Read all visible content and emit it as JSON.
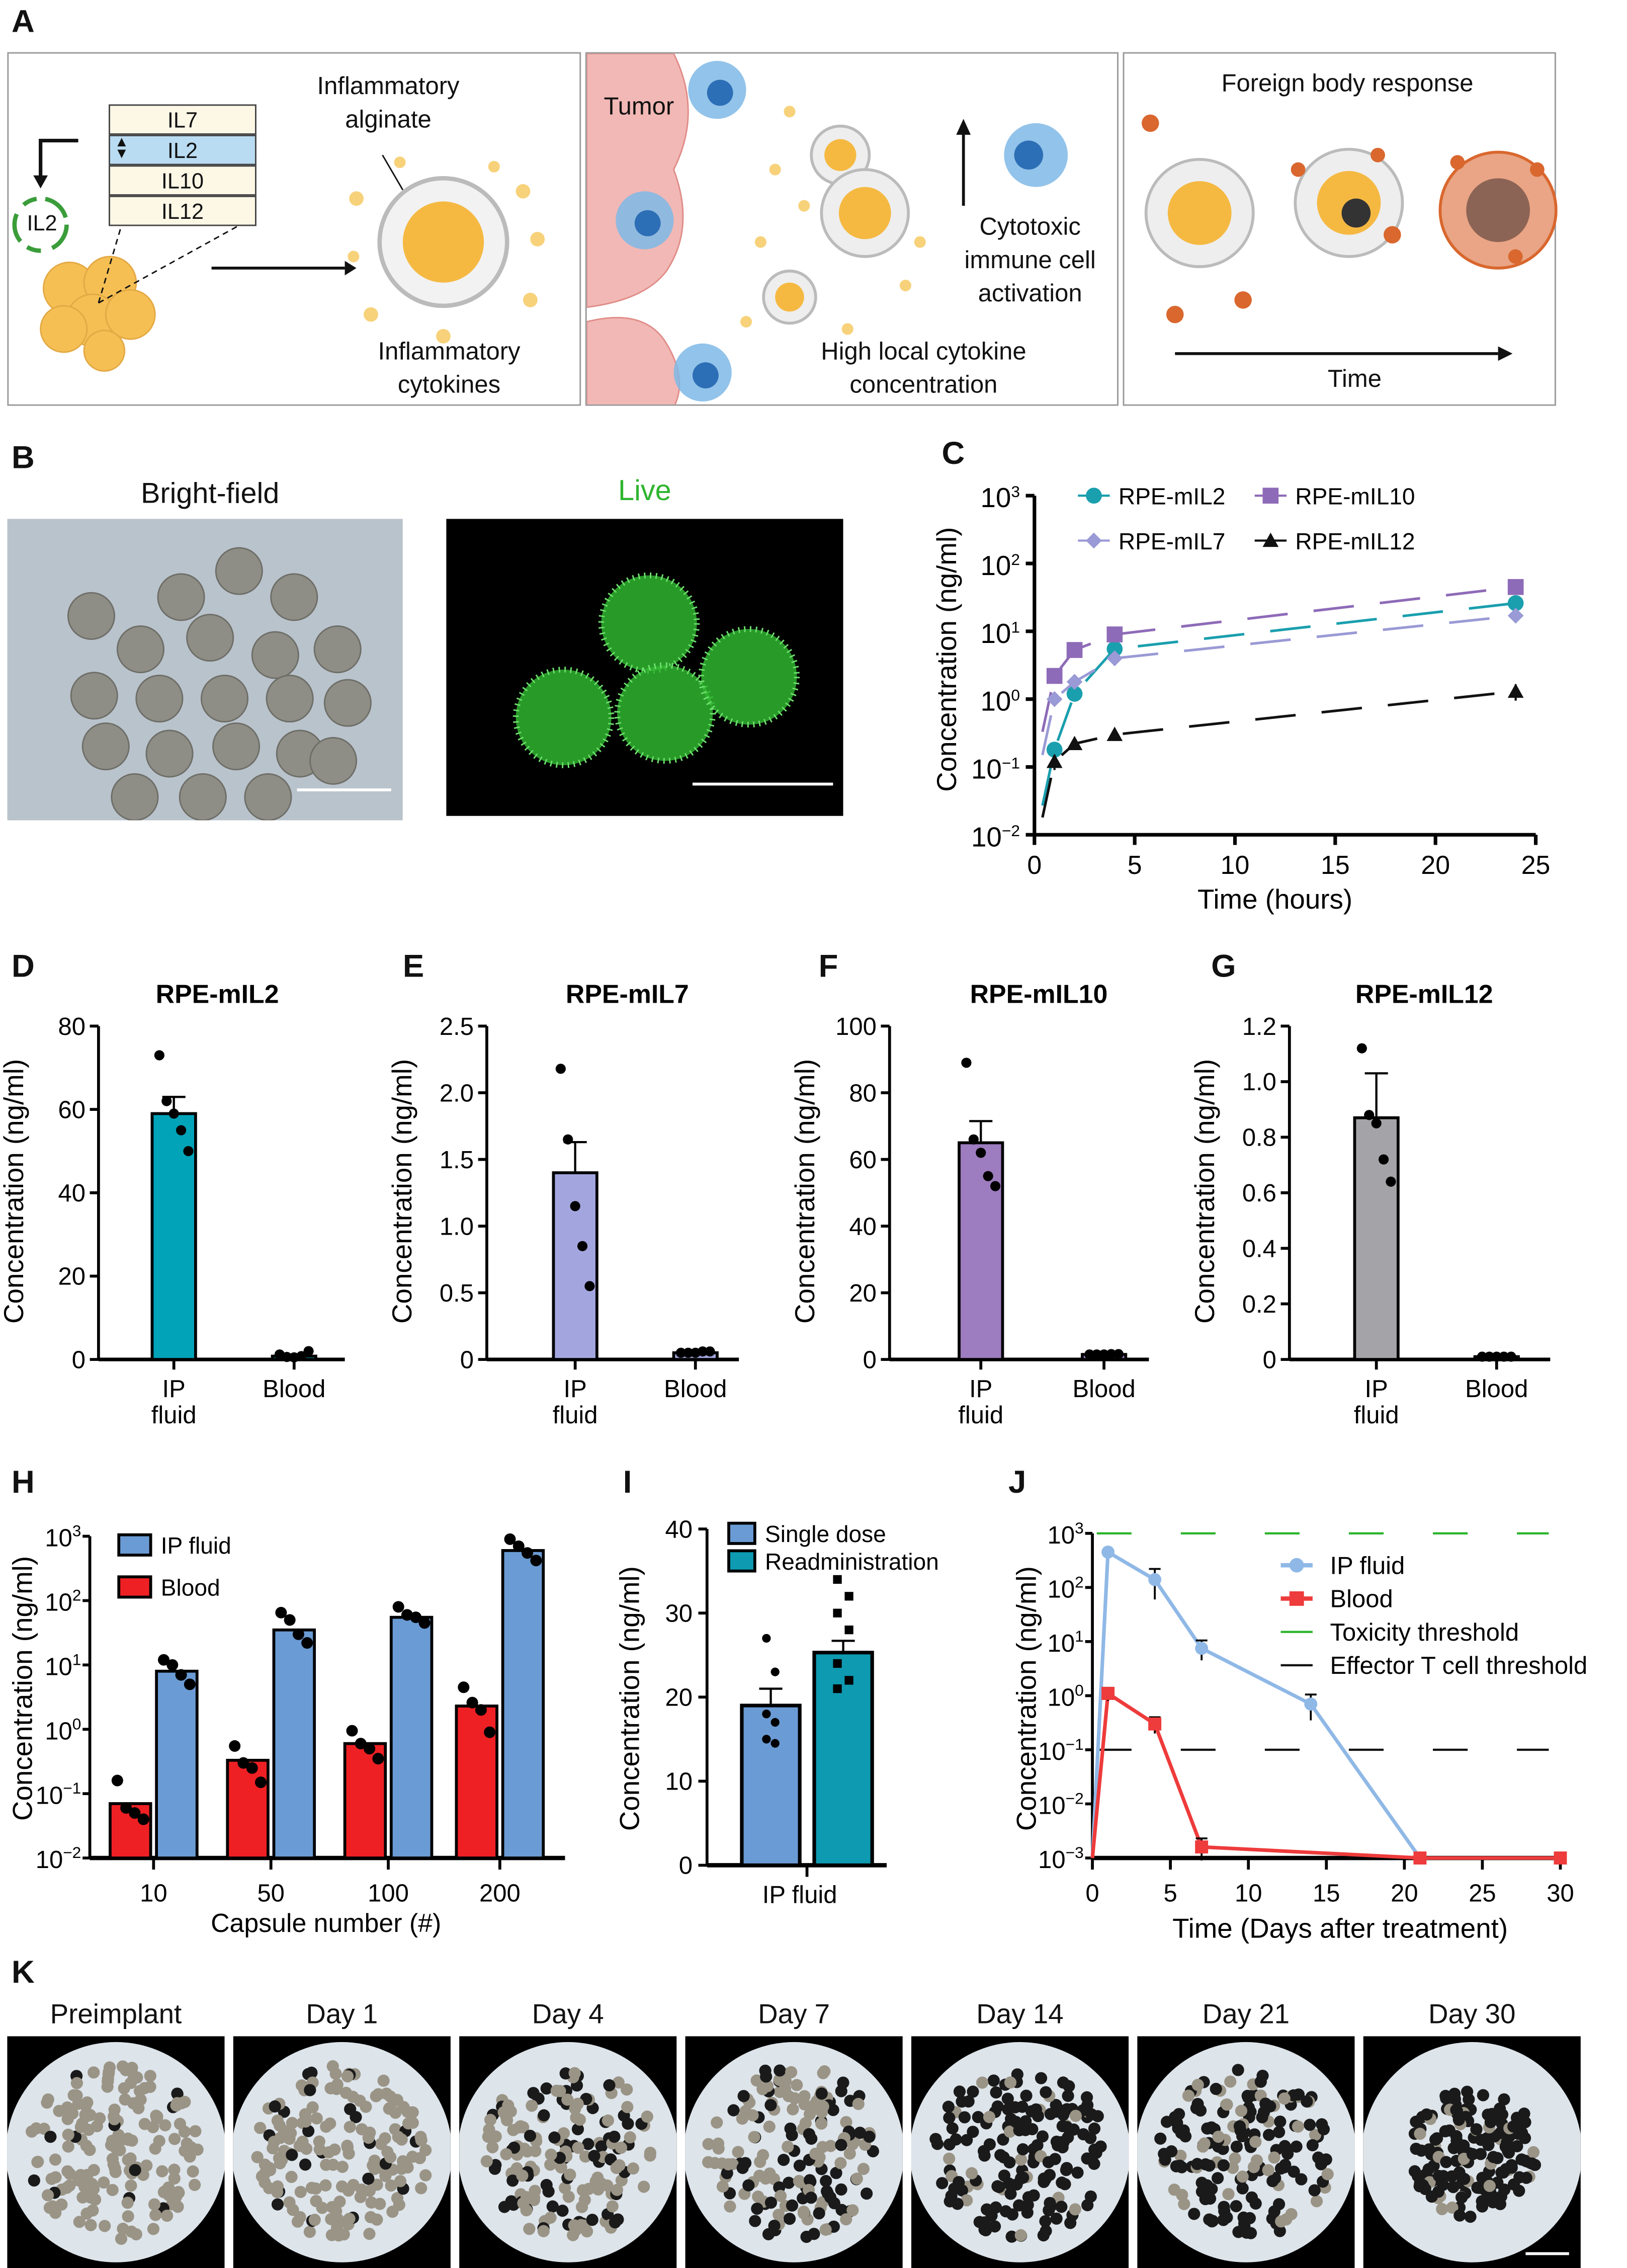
{
  "panel_labels": {
    "a": "A",
    "b": "B",
    "c": "C",
    "d": "D",
    "e": "E",
    "f": "F",
    "g": "G",
    "h": "H",
    "i": "I",
    "j": "J",
    "k": "K"
  },
  "panel_a": {
    "il_list": [
      "IL7",
      "IL2",
      "IL10",
      "IL12"
    ],
    "plasmid_label": "IL2",
    "alginate_label": "Inflammatory alginate",
    "cytokines_label": "Inflammatory cytokines",
    "tumor_label": "Tumor",
    "activation_label": "Cytotoxic immune cell activation",
    "concentration_label": "High local cytokine concentration",
    "fbr_title": "Foreign body response",
    "time_label": "Time",
    "colors": {
      "selected_row": "#b9dcf2",
      "capsule_cells": "#f5b942",
      "tumor": "#f2b8b5",
      "immune_cell": "#7fb8e6",
      "fibroblast": "#d9672e"
    }
  },
  "panel_b": {
    "brightfield_title": "Bright-field",
    "live_title": "Live",
    "live_color": "#2fb52f"
  },
  "panel_k": {
    "labels": [
      "Preimplant",
      "Day 1",
      "Day 4",
      "Day 7",
      "Day 14",
      "Day 21",
      "Day 30"
    ]
  },
  "chart_data": [
    {
      "panel": "C",
      "type": "line",
      "yscale": "log",
      "xlabel": "Time (hours)",
      "ylabel": "Concentration (ng/ml)",
      "xlim": [
        0,
        25
      ],
      "xticks": [
        0,
        5,
        10,
        15,
        20,
        25
      ],
      "ylim": [
        0.01,
        1000
      ],
      "yticks": [
        "10−2",
        "10−1",
        "100",
        "101",
        "102",
        "103"
      ],
      "legend_placement": "top",
      "series": [
        {
          "name": "RPE-mIL2",
          "marker": "circle",
          "color": "#1a9fae",
          "x": [
            1,
            2,
            4,
            24
          ],
          "y": [
            0.18,
            1.2,
            5.5,
            26
          ]
        },
        {
          "name": "RPE-mIL10",
          "marker": "square",
          "color": "#8e6bb8",
          "x": [
            1,
            2,
            4,
            24
          ],
          "y": [
            2.2,
            5.3,
            9,
            45
          ]
        },
        {
          "name": "RPE-mIL7",
          "marker": "diamond",
          "color": "#9a9ad6",
          "x": [
            1,
            2,
            4,
            24
          ],
          "y": [
            1.0,
            1.8,
            4.0,
            17
          ]
        },
        {
          "name": "RPE-mIL12",
          "marker": "triangle",
          "color": "#111111",
          "x": [
            1,
            2,
            4,
            24
          ],
          "y": [
            0.12,
            0.22,
            0.3,
            1.3
          ],
          "err": [
            0.03,
            0,
            0,
            0.35
          ]
        }
      ]
    },
    {
      "panel": "D",
      "type": "bar",
      "title": "RPE-mIL2",
      "ylabel": "Concentration (ng/ml)",
      "ylim": [
        0,
        80
      ],
      "yticks": [
        0,
        20,
        40,
        60,
        80
      ],
      "categories": [
        "IP\nfluid",
        "Blood"
      ],
      "values": [
        59,
        0.8
      ],
      "errors": [
        4,
        0.3
      ],
      "color": "#00a3b8",
      "points": [
        [
          73,
          62,
          59,
          55,
          50
        ],
        [
          1.2,
          0.6,
          0.5,
          0.8,
          2.0
        ]
      ]
    },
    {
      "panel": "E",
      "type": "bar",
      "title": "RPE-mIL7",
      "ylabel": "Concentration (ng/ml)",
      "ylim": [
        0,
        2.5
      ],
      "yticks": [
        "0",
        "0.5",
        "1.0",
        "1.5",
        "2.0",
        "2.5"
      ],
      "categories": [
        "IP\nfluid",
        "Blood"
      ],
      "values": [
        1.4,
        0.05
      ],
      "errors": [
        0.23,
        0.01
      ],
      "color": "#a3a6de",
      "points": [
        [
          2.18,
          1.65,
          1.15,
          0.85,
          0.55
        ],
        [
          0.05,
          0.05,
          0.05,
          0.06,
          0.06
        ]
      ]
    },
    {
      "panel": "F",
      "type": "bar",
      "title": "RPE-mIL10",
      "ylabel": "Concentration (ng/ml)",
      "ylim": [
        0,
        100
      ],
      "yticks": [
        0,
        20,
        40,
        60,
        80,
        100
      ],
      "categories": [
        "IP\nfluid",
        "Blood"
      ],
      "values": [
        65,
        1.5
      ],
      "errors": [
        6.5,
        0.3
      ],
      "color": "#9d7cbf",
      "points": [
        [
          89,
          66,
          62,
          55,
          52
        ],
        [
          1.5,
          1.5,
          1.5,
          1.6,
          1.6
        ]
      ]
    },
    {
      "panel": "G",
      "type": "bar",
      "title": "RPE-mIL12",
      "ylabel": "Concentration (ng/ml)",
      "ylim": [
        0,
        1.2
      ],
      "yticks": [
        "0",
        "0.2",
        "0.4",
        "0.6",
        "0.8",
        "1.0",
        "1.2"
      ],
      "categories": [
        "IP\nfluid",
        "Blood"
      ],
      "values": [
        0.87,
        0.01
      ],
      "errors": [
        0.16,
        0.002
      ],
      "color": "#a3a3a8",
      "points": [
        [
          1.12,
          0.88,
          0.85,
          0.72,
          0.64
        ],
        [
          0.01,
          0.01,
          0.01,
          0.01,
          0.01
        ]
      ]
    },
    {
      "panel": "H",
      "type": "bar",
      "yscale": "log",
      "xlabel": "Capsule number (#)",
      "ylabel": "Concentration (ng/ml)",
      "ylim": [
        0.01,
        1000
      ],
      "yticks": [
        "10−2",
        "10−1",
        "100",
        "101",
        "102",
        "103"
      ],
      "categories": [
        "10",
        "50",
        "100",
        "200"
      ],
      "legend_placement": "top-left",
      "series": [
        {
          "name": "Blood",
          "color": "#ee2024",
          "values": [
            0.07,
            0.33,
            0.6,
            2.3
          ],
          "points": [
            [
              0.16,
              0.06,
              0.05,
              0.04
            ],
            [
              0.55,
              0.3,
              0.25,
              0.15
            ],
            [
              0.95,
              0.6,
              0.5,
              0.35
            ],
            [
              4.5,
              2.6,
              2.0,
              0.9
            ]
          ]
        },
        {
          "name": "IP fluid",
          "color": "#6a9bd4",
          "values": [
            8,
            35,
            55,
            600
          ],
          "points": [
            [
              12,
              10,
              7,
              5
            ],
            [
              65,
              50,
              30,
              22
            ],
            [
              80,
              60,
              55,
              45
            ],
            [
              900,
              700,
              550,
              420
            ]
          ]
        }
      ]
    },
    {
      "panel": "I",
      "type": "bar",
      "ylabel": "Concentration (ng/ml)",
      "ylim": [
        0,
        40
      ],
      "yticks": [
        0,
        10,
        20,
        30,
        40
      ],
      "categories": [
        "IP fluid"
      ],
      "legend_placement": "top",
      "series": [
        {
          "name": "Single dose",
          "color": "#6a9bd4",
          "value": 19,
          "error": 2,
          "points": [
            27,
            23,
            18,
            17,
            15,
            14.5
          ]
        },
        {
          "name": "Readministration",
          "color": "#0e9ab1",
          "value": 25.3,
          "error": 1.4,
          "points": [
            34,
            32,
            30,
            28,
            24,
            22,
            21
          ]
        }
      ]
    },
    {
      "panel": "J",
      "type": "line",
      "yscale": "log",
      "xlabel": "Time (Days after treatment)",
      "ylabel": "Concentration (ng/ml)",
      "xlim": [
        0,
        30
      ],
      "xticks": [
        0,
        5,
        10,
        15,
        20,
        25,
        30
      ],
      "ylim": [
        0.001,
        1000
      ],
      "yticks": [
        "10−3",
        "10−2",
        "10−1",
        "100",
        "101",
        "102",
        "103"
      ],
      "legend_placement": "top-right",
      "series": [
        {
          "name": "IP fluid",
          "color": "#8fb8e6",
          "x": [
            0,
            1,
            4,
            7,
            14,
            21,
            30
          ],
          "y": [
            0.001,
            450,
            140,
            7.5,
            0.7,
            0.001,
            0.001
          ],
          "err": [
            0,
            0,
            80,
            3,
            0.35,
            0,
            0
          ]
        },
        {
          "name": "Blood",
          "color": "#ee3b3b",
          "x": [
            0,
            1,
            4,
            7,
            21,
            30
          ],
          "y": [
            0.001,
            1.1,
            0.3,
            0.0016,
            0.001,
            0.001
          ],
          "err": [
            0,
            0.3,
            0.1,
            0.0007,
            0,
            0
          ]
        }
      ],
      "thresholds": [
        {
          "name": "Toxicity threshold",
          "value": 1000,
          "color": "#2db52d"
        },
        {
          "name": "Effector T cell threshold",
          "value": 0.1,
          "color": "#111111"
        }
      ]
    }
  ]
}
